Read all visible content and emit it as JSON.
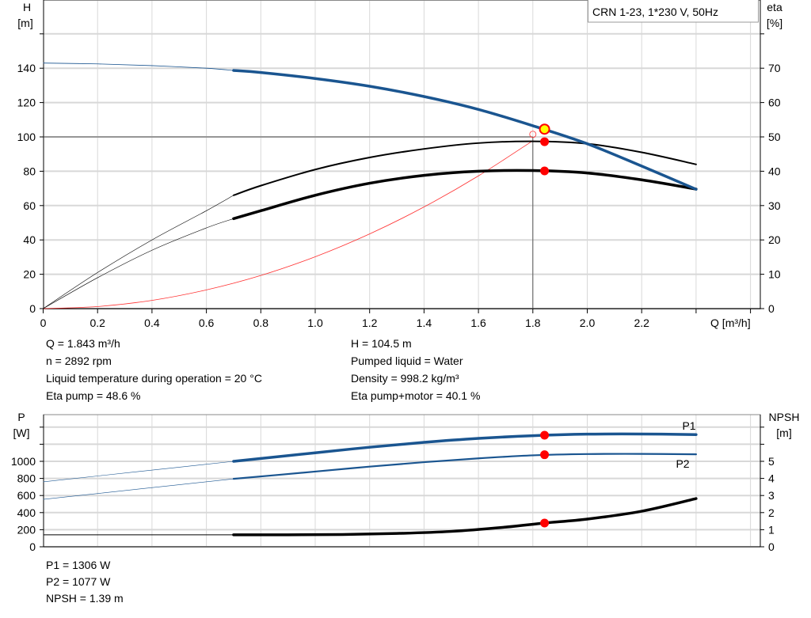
{
  "colors": {
    "head": "#1a5590",
    "power": "#1a5590",
    "eta": "#000000",
    "npsh": "#000000",
    "system": "#ff3030",
    "duty_point": "#ff0000",
    "duty_head": "#ffff00",
    "grid": "#d8d8d8"
  },
  "legend_box": "CRN 1-23, 1*230 V, 50Hz",
  "chart_data": [
    {
      "type": "line",
      "title": "",
      "xlabel": "Q [m³/h]",
      "ylabel_left": [
        "H",
        "[m]"
      ],
      "ylabel_right": [
        "eta",
        "[%]"
      ],
      "xlim": [
        0,
        2.63
      ],
      "ylim_left": [
        0,
        180
      ],
      "ylim_right": [
        0,
        90
      ],
      "grid": true,
      "x_ticks": [
        "0",
        "0.2",
        "0.4",
        "0.6",
        "0.8",
        "1.0",
        "1.2",
        "1.4",
        "1.6",
        "1.8",
        "2.0",
        "2.2"
      ],
      "y_left_ticks": [
        "0",
        "20",
        "40",
        "60",
        "80",
        "100",
        "120",
        "140"
      ],
      "y_right_ticks": [
        "0",
        "10",
        "20",
        "30",
        "40",
        "50",
        "60",
        "70"
      ],
      "series": [
        {
          "key": "H",
          "axis": "left",
          "x": [
            0,
            0.2,
            0.4,
            0.6,
            0.7,
            0.8,
            1.0,
            1.2,
            1.4,
            1.6,
            1.8,
            2.0,
            2.2,
            2.4
          ],
          "y": [
            143,
            142.5,
            141.5,
            140,
            138.7,
            137.5,
            134,
            129.5,
            123.5,
            116,
            106.5,
            96,
            83,
            69.5
          ],
          "thick_from": 0.7
        },
        {
          "key": "eta_pump",
          "axis": "right",
          "x": [
            0,
            0.2,
            0.4,
            0.6,
            0.7,
            0.8,
            1.0,
            1.2,
            1.4,
            1.6,
            1.8,
            2.0,
            2.2,
            2.4
          ],
          "y": [
            0,
            10.5,
            20,
            28.5,
            33,
            35.8,
            40.5,
            44,
            46.5,
            48.2,
            48.7,
            48,
            45.5,
            42
          ],
          "thick_from": 0.7
        },
        {
          "key": "eta_pump_motor",
          "axis": "right",
          "x": [
            0,
            0.2,
            0.4,
            0.6,
            0.7,
            0.8,
            1.0,
            1.2,
            1.4,
            1.6,
            1.8,
            2.0,
            2.2,
            2.4
          ],
          "y": [
            0,
            9,
            17,
            23.5,
            26.2,
            28.5,
            33,
            36.5,
            38.8,
            40,
            40.2,
            39.5,
            37.5,
            34.8
          ],
          "thick_from": 0.7
        },
        {
          "key": "system",
          "axis": "left",
          "x": [
            0,
            0.2,
            0.4,
            0.6,
            0.8,
            1.0,
            1.2,
            1.4,
            1.6,
            1.8
          ],
          "y": [
            0,
            1.2,
            4.8,
            10.9,
            19.3,
            30.2,
            43.5,
            59.2,
            77.3,
            97.8
          ]
        }
      ],
      "reference_lines": {
        "H": 100,
        "Q": 1.8
      },
      "duty_point": {
        "Q": 1.843,
        "H": 104.5,
        "eta_pump": 48.6,
        "eta_pump_motor": 40.1
      }
    },
    {
      "type": "line",
      "title": "",
      "ylabel_left": [
        "P",
        "[W]"
      ],
      "ylabel_right": [
        "NPSH",
        "[m]"
      ],
      "xlim": [
        0,
        2.63
      ],
      "ylim_left": [
        0,
        1550
      ],
      "ylim_right": [
        0,
        7.75
      ],
      "grid": true,
      "y_left_ticks": [
        "0",
        "200",
        "400",
        "600",
        "800",
        "1000"
      ],
      "y_right_ticks": [
        "0",
        "1",
        "2",
        "3",
        "4",
        "5"
      ],
      "series": [
        {
          "key": "P1",
          "name": "P1",
          "axis": "left",
          "x": [
            0,
            0.35,
            0.7,
            1.0,
            1.2,
            1.4,
            1.6,
            1.8,
            2.0,
            2.2,
            2.4
          ],
          "y": [
            760,
            880,
            1000,
            1100,
            1165,
            1222,
            1268,
            1300,
            1318,
            1320,
            1313
          ],
          "thick_from": 0.7
        },
        {
          "key": "P2",
          "name": "P2",
          "axis": "left",
          "x": [
            0,
            0.35,
            0.7,
            1.0,
            1.2,
            1.4,
            1.6,
            1.8,
            2.0,
            2.2,
            2.4
          ],
          "y": [
            555,
            675,
            795,
            880,
            938,
            990,
            1035,
            1070,
            1085,
            1087,
            1082
          ],
          "thick_from": 0.7
        },
        {
          "key": "NPSH",
          "axis": "right",
          "x": [
            0,
            0.7,
            0.9,
            1.1,
            1.3,
            1.5,
            1.7,
            1.843,
            2.0,
            2.2,
            2.4
          ],
          "y": [
            0.7,
            0.7,
            0.7,
            0.72,
            0.78,
            0.9,
            1.15,
            1.39,
            1.62,
            2.08,
            2.82
          ],
          "thick_from": 0.7
        }
      ],
      "duty_point": {
        "Q": 1.843,
        "P1": 1306,
        "P2": 1077,
        "NPSH": 1.39
      }
    }
  ],
  "readouts_top_left": [
    "Q = 1.843 m³/h",
    "n = 2892 rpm",
    "Liquid temperature during operation = 20 °C",
    "Eta pump = 48.6 %"
  ],
  "readouts_top_right": [
    "H = 104.5 m",
    "Pumped liquid = Water",
    "Density = 998.2 kg/m³",
    "Eta pump+motor = 40.1 %"
  ],
  "readouts_bottom": [
    "P1 = 1306 W",
    "P2 = 1077 W",
    "NPSH = 1.39 m"
  ]
}
